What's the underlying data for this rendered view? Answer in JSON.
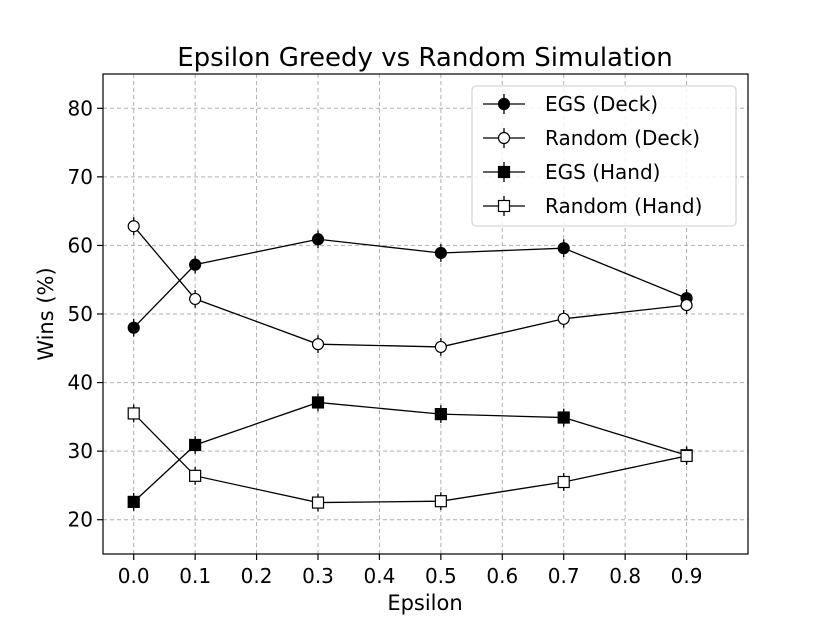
{
  "chart_data": {
    "type": "line",
    "title": "Epsilon Greedy vs Random Simulation",
    "xlabel": "Epsilon",
    "ylabel": "Wins (%)",
    "xlim": [
      -0.05,
      1.0
    ],
    "ylim": [
      15,
      85
    ],
    "x_ticks": [
      "0.0",
      "0.1",
      "0.2",
      "0.3",
      "0.4",
      "0.5",
      "0.6",
      "0.7",
      "0.8",
      "0.9"
    ],
    "x_tick_values": [
      0.0,
      0.1,
      0.2,
      0.3,
      0.4,
      0.5,
      0.6,
      0.7,
      0.8,
      0.9
    ],
    "y_ticks": [
      "20",
      "30",
      "40",
      "50",
      "60",
      "70",
      "80"
    ],
    "y_tick_values": [
      20,
      30,
      40,
      50,
      60,
      70,
      80
    ],
    "grid": true,
    "legend_position": "top-right",
    "x": [
      0.0,
      0.1,
      0.3,
      0.5,
      0.7,
      0.9
    ],
    "series": [
      {
        "name": "EGS (Deck)",
        "marker": "circle",
        "fill": "#000000",
        "values": [
          48.0,
          57.2,
          60.9,
          58.9,
          59.6,
          52.3
        ],
        "errors": [
          1.3,
          1.3,
          1.3,
          1.3,
          1.3,
          1.3
        ]
      },
      {
        "name": "Random (Deck)",
        "marker": "circle",
        "fill": "#ffffff",
        "values": [
          62.8,
          52.2,
          45.6,
          45.2,
          49.3,
          51.3
        ],
        "errors": [
          1.3,
          1.3,
          1.3,
          1.3,
          1.3,
          1.3
        ]
      },
      {
        "name": "EGS (Hand)",
        "marker": "square",
        "fill": "#000000",
        "values": [
          22.6,
          30.9,
          37.1,
          35.4,
          34.9,
          29.4
        ],
        "errors": [
          1.3,
          1.3,
          1.3,
          1.3,
          1.3,
          1.3
        ]
      },
      {
        "name": "Random (Hand)",
        "marker": "square",
        "fill": "#ffffff",
        "values": [
          35.5,
          26.4,
          22.5,
          22.7,
          25.5,
          29.3
        ],
        "errors": [
          1.3,
          1.3,
          1.3,
          1.3,
          1.3,
          1.3
        ]
      }
    ]
  }
}
